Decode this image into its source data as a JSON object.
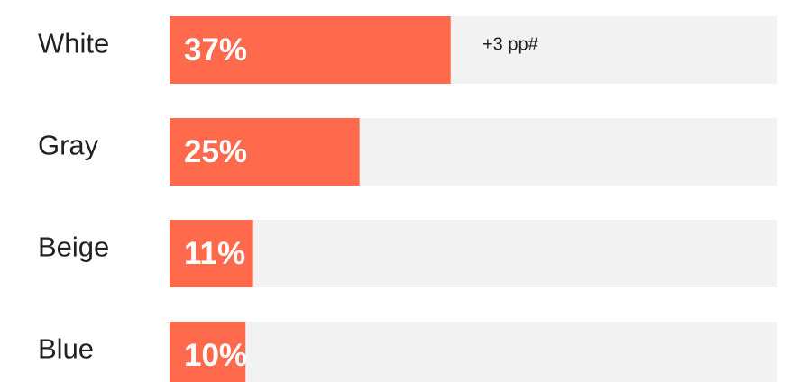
{
  "chart_data": {
    "type": "bar",
    "orientation": "horizontal",
    "categories": [
      "White",
      "Gray",
      "Beige",
      "Blue"
    ],
    "values": [
      37,
      25,
      11,
      10
    ],
    "value_labels": [
      "37%",
      "25%",
      "11%",
      "10%"
    ],
    "annotation": "+3 pp#",
    "color": "#ff6a4d",
    "xlim": [
      0,
      80
    ]
  }
}
